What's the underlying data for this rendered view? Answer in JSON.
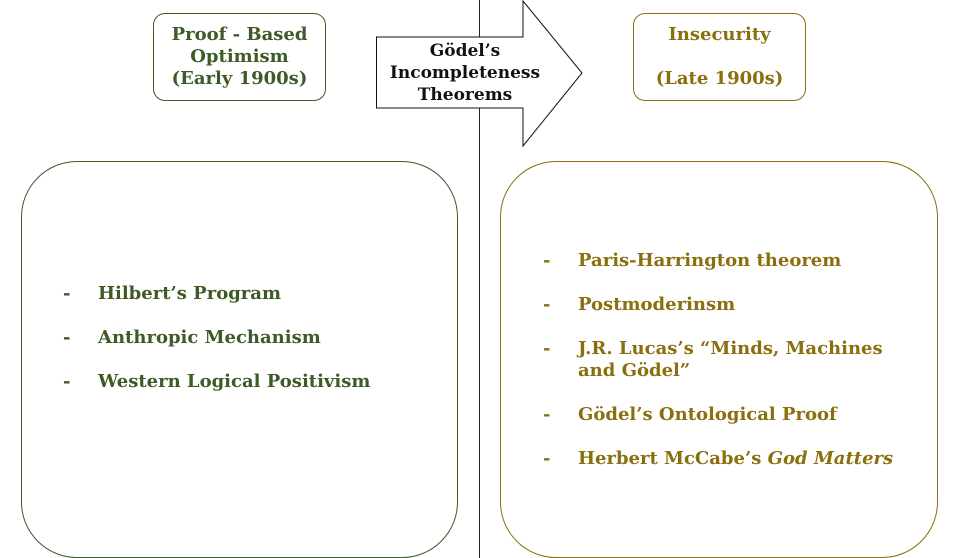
{
  "header": {
    "left_pill": {
      "line1": "Proof - Based",
      "line2": "Optimism",
      "line3": "(Early 1900s)"
    },
    "arrow": {
      "line1": "Gödel’s",
      "line2": "Incompleteness",
      "line3": "Theorems"
    },
    "right_pill": {
      "line1": "Insecurity",
      "line2": "(Late 1900s)"
    }
  },
  "bullet": "-",
  "left_list": {
    "items": [
      "Hilbert’s Program",
      "Anthropic Mechanism",
      "Western Logical Positivism"
    ]
  },
  "right_list": {
    "items": [
      "Paris-Harrington theorem",
      "Postmoderinsm",
      "J.R. Lucas’s “Minds, Machines and Gödel”",
      "Gödel’s Ontological Proof"
    ],
    "last_item": {
      "prefix": "Herbert McCabe’s ",
      "italic": "God Matters"
    }
  },
  "colors": {
    "left_green": "#3d5a27",
    "right_gold": "#8a6f0e",
    "divider": "#222222"
  }
}
